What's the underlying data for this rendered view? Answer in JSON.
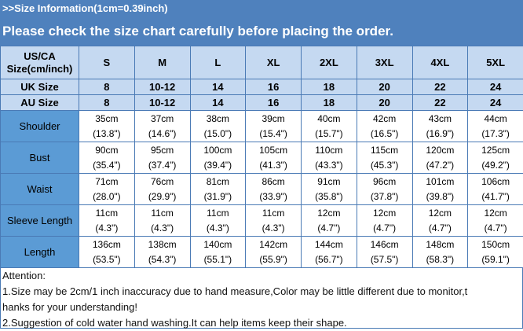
{
  "header": {
    "title": ">>Size Information(1cm=0.39inch)",
    "subtitle": "Please check the size chart carefully before placing the order."
  },
  "colors": {
    "band": "#4f81bd",
    "header_cells": "#c5d9f1",
    "label_cells": "#5b9bd5"
  },
  "table": {
    "header_rows": [
      {
        "label": "US/CA Size(cm/inch)",
        "values": [
          "S",
          "M",
          "L",
          "XL",
          "2XL",
          "3XL",
          "4XL",
          "5XL"
        ]
      },
      {
        "label": "UK Size",
        "values": [
          "8",
          "10-12",
          "14",
          "16",
          "18",
          "20",
          "22",
          "24"
        ]
      },
      {
        "label": "AU Size",
        "values": [
          "8",
          "10-12",
          "14",
          "16",
          "18",
          "20",
          "22",
          "24"
        ]
      }
    ],
    "measure_rows": [
      {
        "label": "Shoulder",
        "values": [
          [
            "35cm",
            "(13.8\")"
          ],
          [
            "37cm",
            "(14.6\")"
          ],
          [
            "38cm",
            "(15.0\")"
          ],
          [
            "39cm",
            "(15.4\")"
          ],
          [
            "40cm",
            "(15.7\")"
          ],
          [
            "42cm",
            "(16.5\")"
          ],
          [
            "43cm",
            "(16.9\")"
          ],
          [
            "44cm",
            "(17.3\")"
          ]
        ]
      },
      {
        "label": "Bust",
        "values": [
          [
            "90cm",
            "(35.4\")"
          ],
          [
            "95cm",
            "(37.4\")"
          ],
          [
            "100cm",
            "(39.4\")"
          ],
          [
            "105cm",
            "(41.3\")"
          ],
          [
            "110cm",
            "(43.3\")"
          ],
          [
            "115cm",
            "(45.3\")"
          ],
          [
            "120cm",
            "(47.2\")"
          ],
          [
            "125cm",
            "(49.2\")"
          ]
        ]
      },
      {
        "label": "Waist",
        "values": [
          [
            "71cm",
            "(28.0\")"
          ],
          [
            "76cm",
            "(29.9\")"
          ],
          [
            "81cm",
            "(31.9\")"
          ],
          [
            "86cm",
            "(33.9\")"
          ],
          [
            "91cm",
            "(35.8\")"
          ],
          [
            "96cm",
            "(37.8\")"
          ],
          [
            "101cm",
            "(39.8\")"
          ],
          [
            "106cm",
            "(41.7\")"
          ]
        ]
      },
      {
        "label": "Sleeve Length",
        "values": [
          [
            "11cm",
            "(4.3\")"
          ],
          [
            "11cm",
            "(4.3\")"
          ],
          [
            "11cm",
            "(4.3\")"
          ],
          [
            "11cm",
            "(4.3\")"
          ],
          [
            "12cm",
            "(4.7\")"
          ],
          [
            "12cm",
            "(4.7\")"
          ],
          [
            "12cm",
            "(4.7\")"
          ],
          [
            "12cm",
            "(4.7\")"
          ]
        ]
      },
      {
        "label": "Length",
        "values": [
          [
            "136cm",
            "(53.5\")"
          ],
          [
            "138cm",
            "(54.3\")"
          ],
          [
            "140cm",
            "(55.1\")"
          ],
          [
            "142cm",
            "(55.9\")"
          ],
          [
            "144cm",
            "(56.7\")"
          ],
          [
            "146cm",
            "(57.5\")"
          ],
          [
            "148cm",
            "(58.3\")"
          ],
          [
            "150cm",
            "(59.1\")"
          ]
        ]
      }
    ]
  },
  "attention": {
    "heading": "Attention:",
    "lines": [
      "1.Size may be 2cm/1 inch inaccuracy due to hand measure,Color may be little different due to monitor,t",
      "hanks for your understanding!",
      "2.Suggestion of cold water hand washing.It can help items keep their shape."
    ]
  }
}
